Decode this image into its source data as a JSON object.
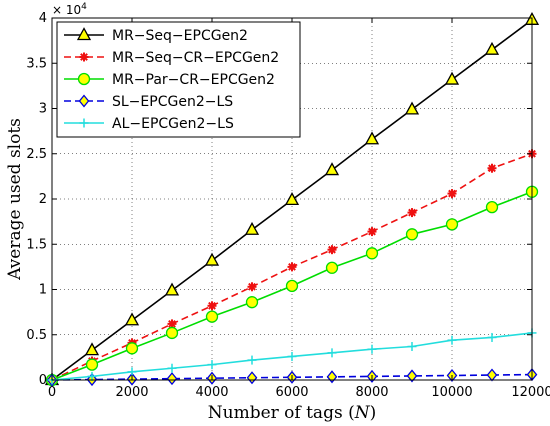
{
  "chart_data": {
    "type": "line",
    "xlabel": "Number of tags (N)",
    "xlabel_main": "Number of tags (",
    "xlabel_var": "N",
    "xlabel_close": ")",
    "ylabel": "Average used slots",
    "y_multiplier_base": "× 10",
    "y_multiplier_exp": "4",
    "xlim": [
      0,
      12000
    ],
    "ylim": [
      0,
      4
    ],
    "y_scale": 10000,
    "xticks": [
      0,
      2000,
      4000,
      6000,
      8000,
      10000,
      12000
    ],
    "xtick_labels": [
      "0",
      "2000",
      "4000",
      "6000",
      "8000",
      "10000",
      "12000"
    ],
    "yticks": [
      0,
      0.5,
      1,
      1.5,
      2,
      2.5,
      3,
      3.5,
      4
    ],
    "ytick_labels": [
      "0",
      "0.5",
      "1",
      "1.5",
      "2",
      "2.5",
      "3",
      "3.5",
      "4"
    ],
    "grid": true,
    "legend_position": "top-left",
    "x": [
      0,
      1000,
      2000,
      3000,
      4000,
      5000,
      6000,
      7000,
      8000,
      9000,
      10000,
      11000,
      12000
    ],
    "series": [
      {
        "name": "MR−Seq−EPCGen2",
        "color": "#000000",
        "marker": "triangle",
        "marker_fill": "#ffff00",
        "line_style": "solid",
        "values": [
          0,
          0.33,
          0.66,
          0.99,
          1.32,
          1.66,
          1.99,
          2.32,
          2.66,
          2.99,
          3.32,
          3.65,
          3.98
        ]
      },
      {
        "name": "MR−Seq−CR−EPCGen2",
        "color": "#ee1111",
        "marker": "star",
        "marker_fill": "#ee1111",
        "line_style": "dashed",
        "values": [
          0,
          0.21,
          0.41,
          0.62,
          0.82,
          1.03,
          1.25,
          1.44,
          1.64,
          1.85,
          2.06,
          2.34,
          2.5
        ]
      },
      {
        "name": "MR−Par−CR−EPCGen2",
        "color": "#00dd00",
        "marker": "circle",
        "marker_fill": "#ffff00",
        "line_style": "solid",
        "values": [
          0,
          0.17,
          0.35,
          0.52,
          0.7,
          0.86,
          1.04,
          1.24,
          1.4,
          1.61,
          1.72,
          1.91,
          2.08
        ]
      },
      {
        "name": "SL−EPCGen2−LS",
        "color": "#0000dd",
        "marker": "diamond",
        "marker_fill": "#ffff00",
        "line_style": "dashed",
        "values": [
          0,
          0.005,
          0.01,
          0.015,
          0.02,
          0.025,
          0.03,
          0.035,
          0.04,
          0.045,
          0.05,
          0.055,
          0.06
        ]
      },
      {
        "name": "AL−EPCGen2−LS",
        "color": "#22dddd",
        "marker": "plus",
        "marker_fill": "#22dddd",
        "line_style": "solid",
        "values": [
          0,
          0.04,
          0.09,
          0.13,
          0.17,
          0.22,
          0.26,
          0.3,
          0.34,
          0.37,
          0.44,
          0.47,
          0.52
        ]
      }
    ]
  }
}
